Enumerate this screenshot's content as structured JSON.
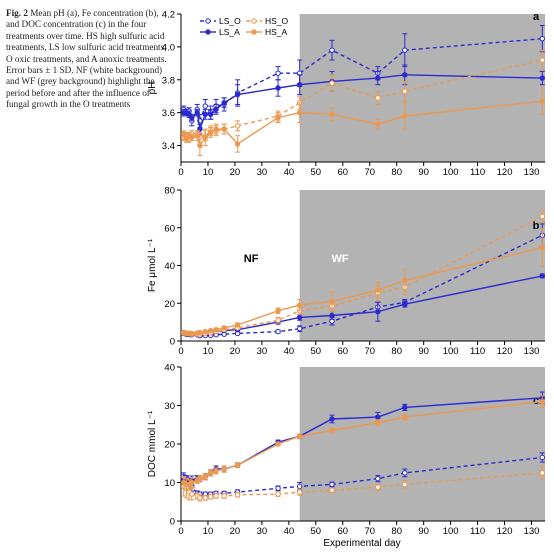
{
  "caption": {
    "figure_label": "Fig. 2",
    "text": "Mean pH (a), Fe concentration (b), and DOC concentration (c) in the four treatments over time. HS high sulfuric acid treatments, LS low sulfuric acid treatments, O oxic treatments, and A anoxic treatments. Error bars ± 1 SD. NF (white background) and WF (grey background) highlight the period before and after the influence of fungal growth in the O treatments"
  },
  "x_axis": {
    "label": "Experimental day",
    "range": [
      0,
      135
    ],
    "ticks": [
      0,
      10,
      20,
      30,
      40,
      50,
      60,
      70,
      80,
      90,
      100,
      110,
      120,
      130
    ]
  },
  "shading": {
    "from_day": 44,
    "to_day": 135,
    "color": "#b3b3b3"
  },
  "colors": {
    "LS": "#2a2ad0",
    "HS": "#ec9950"
  },
  "legend": [
    {
      "name": "LS_O",
      "color": "#2a2ad0",
      "marker": "open",
      "dash": true
    },
    {
      "name": "LS_A",
      "color": "#2a2ad0",
      "marker": "filled",
      "dash": false
    },
    {
      "name": "HS_O",
      "color": "#ec9950",
      "marker": "open",
      "dash": true
    },
    {
      "name": "HS_A",
      "color": "#ec9950",
      "marker": "filled",
      "dash": false
    }
  ],
  "chart_data": [
    {
      "type": "line",
      "panel": "a",
      "ylabel": "pH",
      "ylim": [
        3.3,
        4.2
      ],
      "yticks": [
        3.4,
        3.6,
        3.8,
        4.0,
        4.2
      ],
      "y_tick_labels": [
        "3.4",
        "3.6",
        "3.8",
        "4.0",
        "4.2"
      ],
      "annotations": [],
      "series": [
        {
          "name": "LS_O",
          "x": [
            1,
            2,
            3,
            4,
            6,
            7,
            9,
            11,
            13,
            16,
            21,
            36,
            44,
            56,
            73,
            83,
            134
          ],
          "y": [
            3.62,
            3.6,
            3.61,
            3.55,
            3.62,
            3.55,
            3.64,
            3.6,
            3.64,
            3.65,
            3.72,
            3.84,
            3.84,
            3.98,
            3.84,
            3.98,
            4.05
          ],
          "err": [
            0.02,
            0.02,
            0.02,
            0.03,
            0.03,
            0.04,
            0.04,
            0.04,
            0.04,
            0.04,
            0.08,
            0.04,
            0.08,
            0.06,
            0.04,
            0.1,
            0.08
          ]
        },
        {
          "name": "LS_A",
          "x": [
            1,
            2,
            3,
            4,
            6,
            7,
            9,
            11,
            13,
            16,
            21,
            36,
            44,
            56,
            73,
            83,
            134
          ],
          "y": [
            3.6,
            3.6,
            3.59,
            3.57,
            3.6,
            3.5,
            3.59,
            3.59,
            3.62,
            3.66,
            3.71,
            3.75,
            3.77,
            3.79,
            3.81,
            3.83,
            3.81
          ],
          "err": [
            0.02,
            0.02,
            0.02,
            0.02,
            0.02,
            0.03,
            0.03,
            0.03,
            0.03,
            0.03,
            0.06,
            0.05,
            0.06,
            0.06,
            0.04,
            0.06,
            0.04
          ]
        },
        {
          "name": "HS_O",
          "x": [
            1,
            2,
            3,
            4,
            6,
            7,
            9,
            11,
            13,
            16,
            21,
            36,
            44,
            56,
            73,
            83,
            134
          ],
          "y": [
            3.45,
            3.46,
            3.44,
            3.47,
            3.47,
            3.45,
            3.46,
            3.49,
            3.49,
            3.5,
            3.52,
            3.58,
            3.66,
            3.78,
            3.69,
            3.73,
            3.92
          ],
          "err": [
            0.02,
            0.02,
            0.02,
            0.02,
            0.02,
            0.03,
            0.03,
            0.03,
            0.03,
            0.03,
            0.03,
            0.03,
            0.04,
            0.05,
            0.04,
            0.06,
            0.06
          ]
        },
        {
          "name": "HS_A",
          "x": [
            1,
            2,
            3,
            4,
            6,
            7,
            9,
            11,
            13,
            16,
            21,
            36,
            44,
            56,
            73,
            83,
            134
          ],
          "y": [
            3.47,
            3.44,
            3.46,
            3.45,
            3.46,
            3.4,
            3.45,
            3.48,
            3.5,
            3.5,
            3.41,
            3.57,
            3.6,
            3.59,
            3.53,
            3.58,
            3.67
          ],
          "err": [
            0.02,
            0.02,
            0.02,
            0.02,
            0.03,
            0.06,
            0.05,
            0.03,
            0.03,
            0.03,
            0.05,
            0.03,
            0.06,
            0.04,
            0.03,
            0.08,
            0.08
          ]
        }
      ]
    },
    {
      "type": "line",
      "panel": "b",
      "ylabel": "Fe μmol L⁻¹",
      "ylim": [
        0,
        80
      ],
      "yticks": [
        0,
        20,
        40,
        60,
        80
      ],
      "y_tick_labels": [
        "0",
        "20",
        "40",
        "60",
        "80"
      ],
      "annotations": [
        {
          "text": "NF",
          "x": 26,
          "y": 44,
          "color": "#000000"
        },
        {
          "text": "WF",
          "x": 59,
          "y": 44,
          "color": "#ffffff"
        }
      ],
      "series": [
        {
          "name": "LS_O",
          "x": [
            1,
            2,
            3,
            4,
            6,
            7,
            9,
            11,
            13,
            16,
            21,
            36,
            44,
            56,
            73,
            83,
            134
          ],
          "y": [
            4,
            3.5,
            3.4,
            3.3,
            3.3,
            2.8,
            2.9,
            3,
            3.3,
            3.6,
            4,
            5,
            6.5,
            10.5,
            18,
            20.5,
            56
          ],
          "err": [
            0.4,
            0.4,
            0.4,
            0.4,
            0.4,
            0.4,
            0.4,
            0.4,
            0.4,
            0.5,
            0.6,
            0.8,
            1.5,
            2,
            2.5,
            1.5,
            6
          ]
        },
        {
          "name": "LS_A",
          "x": [
            1,
            2,
            3,
            4,
            6,
            7,
            9,
            11,
            13,
            16,
            21,
            36,
            44,
            56,
            73,
            83,
            134
          ],
          "y": [
            4.5,
            4.2,
            4,
            3.9,
            4,
            4,
            4.2,
            4.3,
            5,
            5.5,
            6,
            10,
            12.5,
            13.5,
            15.5,
            19.5,
            34.5
          ],
          "err": [
            0.4,
            0.4,
            0.4,
            0.4,
            0.4,
            0.4,
            0.4,
            0.4,
            0.5,
            0.5,
            0.6,
            1,
            1.5,
            2,
            5,
            1.5,
            1
          ]
        },
        {
          "name": "HS_O",
          "x": [
            1,
            2,
            3,
            4,
            6,
            7,
            9,
            11,
            13,
            16,
            21,
            36,
            44,
            56,
            73,
            83,
            134
          ],
          "y": [
            4.2,
            3.9,
            3.8,
            3.6,
            3.6,
            3.7,
            4,
            4.3,
            5,
            6,
            7,
            11,
            16,
            18.5,
            25.5,
            28.5,
            66
          ],
          "err": [
            0.4,
            0.4,
            0.4,
            0.4,
            0.4,
            0.4,
            0.4,
            0.5,
            0.5,
            0.6,
            0.8,
            1.5,
            2,
            3,
            4,
            4,
            3
          ]
        },
        {
          "name": "HS_A",
          "x": [
            1,
            2,
            3,
            4,
            6,
            7,
            9,
            11,
            13,
            16,
            21,
            36,
            44,
            56,
            73,
            83,
            134
          ],
          "y": [
            4.5,
            4.2,
            4.1,
            4,
            4.2,
            4.5,
            5,
            5.5,
            6,
            7,
            8.5,
            16,
            19,
            21,
            27,
            32,
            49.5
          ],
          "err": [
            0.4,
            0.4,
            0.4,
            0.4,
            0.4,
            0.5,
            0.5,
            0.5,
            0.6,
            0.8,
            1,
            1.5,
            3,
            5,
            4,
            6,
            10
          ]
        }
      ]
    },
    {
      "type": "line",
      "panel": "c",
      "ylabel": "DOC mmol L⁻¹",
      "ylim": [
        0,
        40
      ],
      "yticks": [
        0,
        10,
        20,
        30,
        40
      ],
      "y_tick_labels": [
        "0",
        "10",
        "20",
        "30",
        "40"
      ],
      "annotations": [],
      "series": [
        {
          "name": "LS_O",
          "x": [
            1,
            2,
            3,
            4,
            6,
            7,
            9,
            11,
            13,
            16,
            21,
            36,
            44,
            56,
            73,
            83,
            134
          ],
          "y": [
            10.5,
            10,
            9.5,
            9,
            7.2,
            7,
            7,
            7,
            7.2,
            7.2,
            7.5,
            8.5,
            9,
            9.5,
            11,
            12.5,
            16.5
          ],
          "err": [
            2,
            1.8,
            1.5,
            1.2,
            0.6,
            0.5,
            0.5,
            0.5,
            0.5,
            0.5,
            0.6,
            0.6,
            1,
            0.6,
            0.8,
            1,
            1.2
          ]
        },
        {
          "name": "LS_A",
          "x": [
            1,
            2,
            3,
            4,
            6,
            7,
            9,
            11,
            13,
            16,
            21,
            36,
            44,
            56,
            73,
            83,
            134
          ],
          "y": [
            10.5,
            10,
            10,
            10.5,
            11,
            11,
            11.5,
            12.5,
            13.5,
            13.5,
            14.5,
            20.5,
            22,
            26.5,
            27,
            29.5,
            32
          ],
          "err": [
            1.5,
            1.5,
            1.2,
            1.2,
            0.8,
            0.8,
            0.8,
            0.8,
            0.8,
            0.8,
            0.6,
            0.5,
            0.6,
            1,
            1.2,
            0.8,
            1.5
          ]
        },
        {
          "name": "HS_O",
          "x": [
            1,
            2,
            3,
            4,
            6,
            7,
            9,
            11,
            13,
            16,
            21,
            36,
            44,
            56,
            73,
            83,
            134
          ],
          "y": [
            9,
            8.5,
            7.5,
            7,
            6.5,
            6,
            6,
            6.3,
            6.5,
            6.5,
            6.8,
            7,
            7.5,
            8,
            8.8,
            9.5,
            12.5
          ],
          "err": [
            2.5,
            2.5,
            2,
            1.5,
            0.8,
            0.8,
            0.6,
            0.6,
            0.6,
            0.6,
            0.6,
            0.6,
            0.8,
            0.6,
            0.8,
            1,
            1.8
          ]
        },
        {
          "name": "HS_A",
          "x": [
            1,
            2,
            3,
            4,
            6,
            7,
            9,
            11,
            13,
            16,
            21,
            36,
            44,
            56,
            73,
            83,
            134
          ],
          "y": [
            10,
            9.5,
            9.5,
            10,
            10.5,
            11,
            11.5,
            12.5,
            13,
            13.5,
            14.5,
            20,
            22,
            23.5,
            25.5,
            27,
            31
          ],
          "err": [
            1.5,
            1.5,
            1.2,
            1.2,
            0.8,
            0.8,
            0.8,
            0.8,
            0.8,
            0.8,
            0.6,
            0.5,
            0.6,
            0.6,
            0.8,
            0.8,
            1.5
          ]
        }
      ]
    }
  ]
}
